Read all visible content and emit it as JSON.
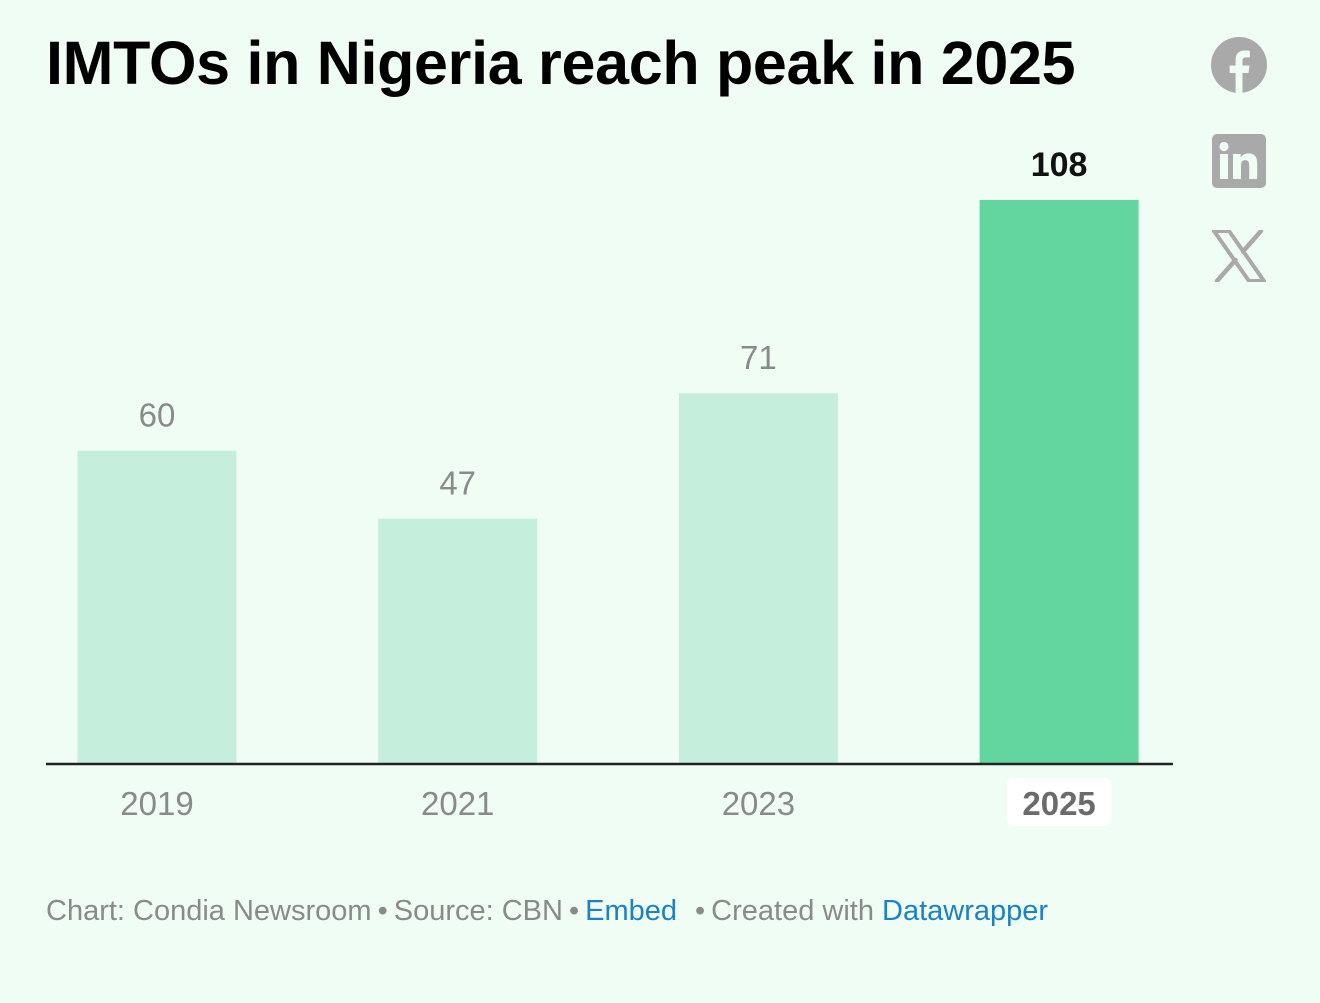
{
  "title": "IMTOs in Nigeria reach peak in 2025",
  "social": {
    "facebook_label": "Facebook",
    "linkedin_label": "LinkedIn",
    "x_label": "X"
  },
  "colors": {
    "bar_default": "#c6eedd",
    "bar_highlight": "#62d69e",
    "label_default": "#8a8a8a",
    "label_highlight": "#111111",
    "icon": "#a9a9a9",
    "link": "#1d81c4",
    "background": "#f0fdf4"
  },
  "chart_data": {
    "type": "bar",
    "title": "IMTOs in Nigeria reach peak in 2025",
    "categories": [
      "2019",
      "2021",
      "2023",
      "2025"
    ],
    "values": [
      60,
      47,
      71,
      108
    ],
    "highlight": "2025",
    "xlabel": "",
    "ylabel": "",
    "ylim": [
      0,
      108
    ],
    "grid": false,
    "legend": "none"
  },
  "footer": {
    "chart_credit": "Chart: Condia Newsroom",
    "source": "Source: CBN",
    "separator": "•",
    "embed": "Embed",
    "created_with": "Created with",
    "datawrapper": "Datawrapper"
  }
}
